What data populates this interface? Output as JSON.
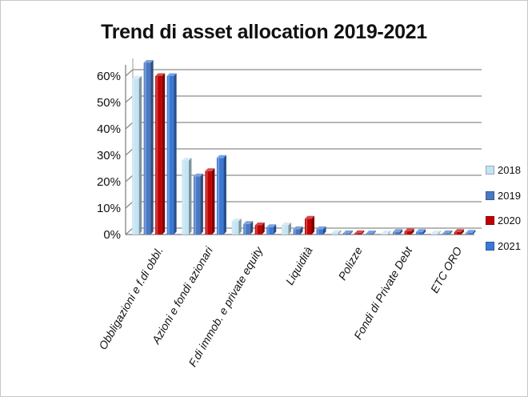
{
  "chart_data": {
    "type": "bar",
    "title": "Trend di asset allocation 2019-2021",
    "categories": [
      "Obbligazioni e f.di obbl.",
      "Azioni e fondi azionari",
      "F.di immob. e private equity",
      "Liquidità",
      "Polizze",
      "Fondi di Private Debt",
      "ETC ORO"
    ],
    "series": [
      {
        "name": "2018",
        "color": "#c3e4f2",
        "values": [
          59,
          28,
          5,
          3.5,
          0.6,
          0.3,
          0.1
        ]
      },
      {
        "name": "2019",
        "color": "#4a79c4",
        "values": [
          65,
          22,
          4,
          2,
          0.5,
          1,
          0.5
        ]
      },
      {
        "name": "2020",
        "color": "#c00000",
        "values": [
          60,
          24,
          3.5,
          6,
          0.5,
          1.2,
          1
        ]
      },
      {
        "name": "2021",
        "color": "#3b78d4",
        "values": [
          60,
          29,
          2.8,
          2,
          0.4,
          1,
          0.7
        ]
      }
    ],
    "yticks": [
      "0%",
      "10%",
      "20%",
      "30%",
      "40%",
      "50%",
      "60%"
    ],
    "ylim": [
      0,
      60
    ],
    "grid": true,
    "legend_position": "right"
  }
}
